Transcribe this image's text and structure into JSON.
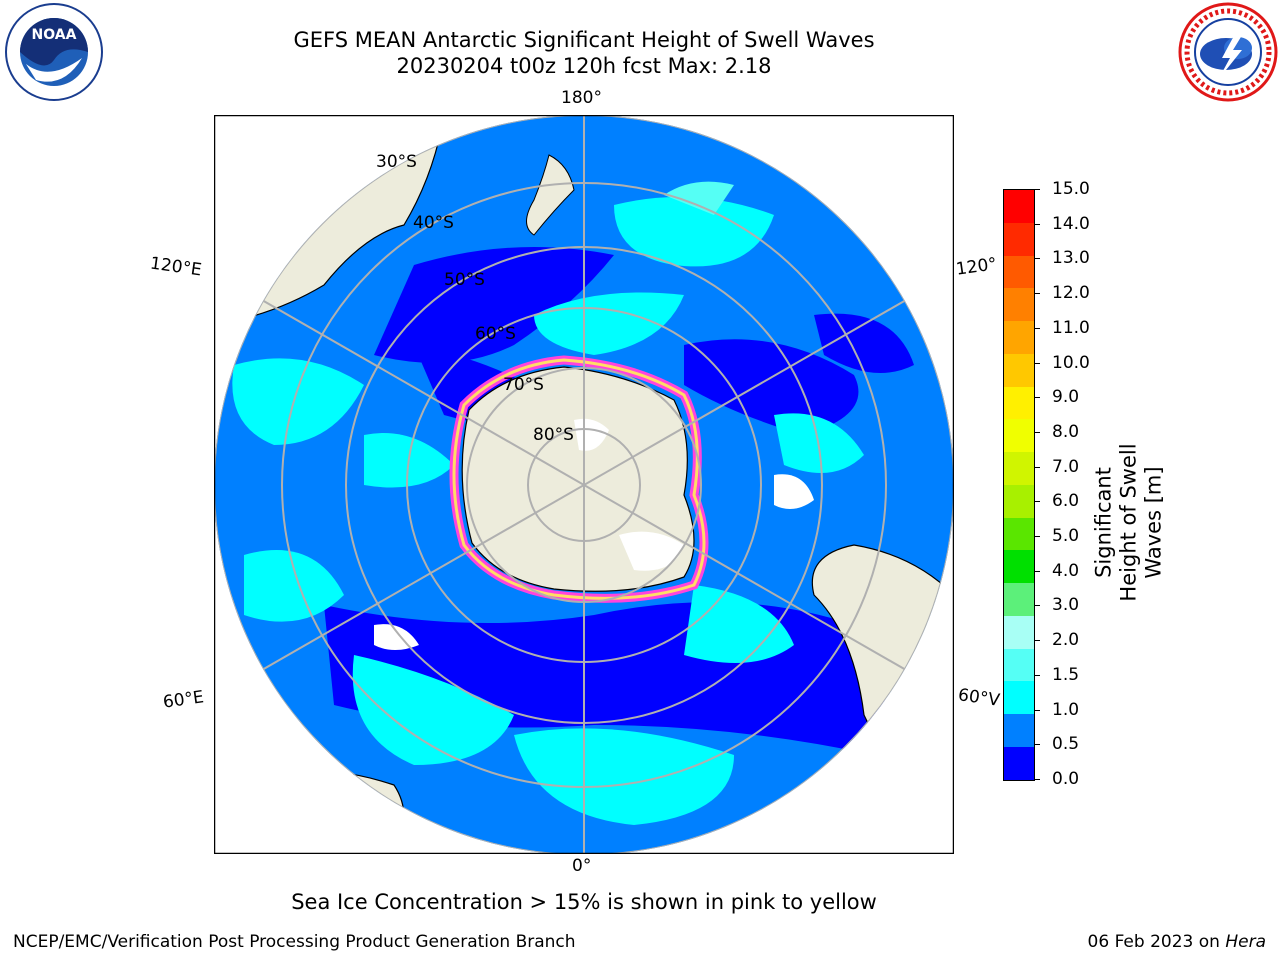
{
  "title": {
    "line1": "GEFS MEAN Antarctic Significant Height of Swell Waves",
    "line2": "20230204 t00z 120h fcst   Max: 2.18"
  },
  "logos": {
    "left": "noaa-logo",
    "right": "nws-logo"
  },
  "map": {
    "projection": "south-polar-stereographic",
    "lon_labels": {
      "top": "180°",
      "bottom": "0°",
      "upper_left": "120°E",
      "lower_left": "60°E",
      "upper_right": "120°",
      "lower_right": "60°V"
    },
    "lat_labels": [
      "30°S",
      "40°S",
      "50°S",
      "60°S",
      "70°S",
      "80°S"
    ],
    "colors": {
      "land": "#edecdc",
      "ice": "#ffffff",
      "grid": "#b0b0b0"
    }
  },
  "colorbar": {
    "label": "Significant Height of Swell Waves [m]",
    "ticks": [
      "15.0",
      "14.0",
      "13.0",
      "12.0",
      "11.0",
      "10.0",
      "9.0",
      "8.0",
      "7.0",
      "6.0",
      "5.0",
      "4.0",
      "3.0",
      "2.0",
      "1.5",
      "1.0",
      "0.5",
      "0.0"
    ],
    "colors": [
      "#ff0000",
      "#ff2a00",
      "#ff5a00",
      "#ff8000",
      "#ffa500",
      "#ffc800",
      "#fff000",
      "#f0ff00",
      "#d0f500",
      "#a8f000",
      "#5ae600",
      "#00e000",
      "#5cf07a",
      "#a8fff5",
      "#55fff5",
      "#00ffff",
      "#0080ff",
      "#0000ff"
    ]
  },
  "note": "Sea Ice Concentration > 15% is shown in pink to yellow",
  "footer": {
    "left": "NCEP/EMC/Verification Post Processing Product Generation Branch",
    "right_prefix": "06 Feb 2023 on ",
    "right_host": "Hera"
  }
}
